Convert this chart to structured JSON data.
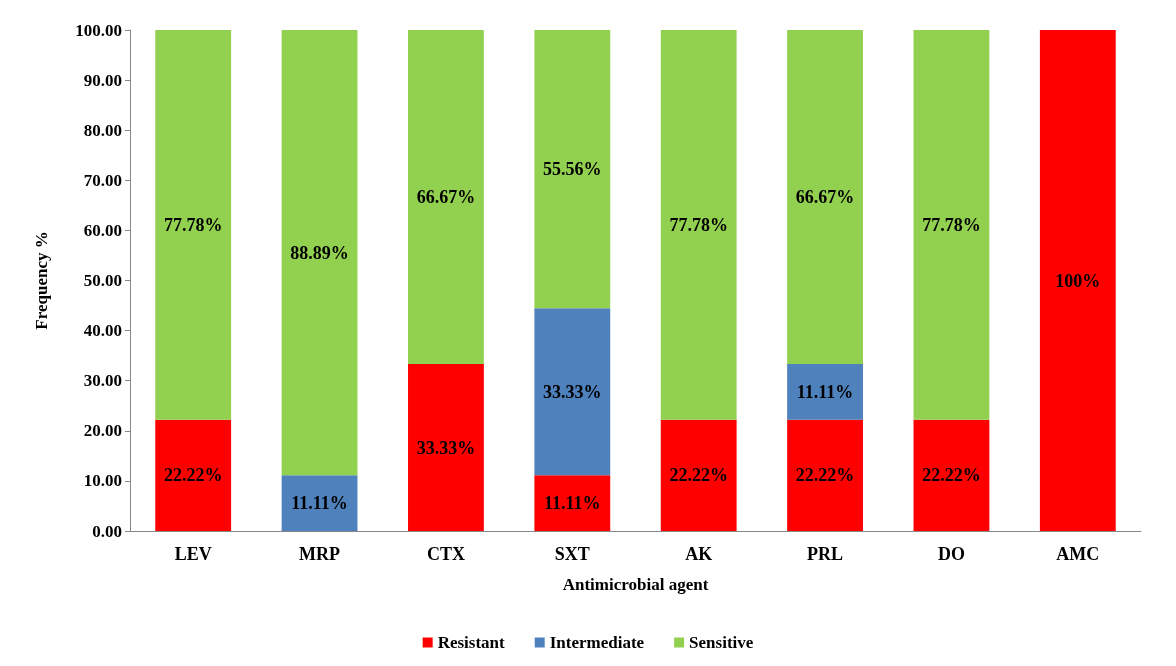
{
  "chart_data": {
    "type": "bar",
    "stacked": true,
    "xlabel": "Antimicrobial agent",
    "ylabel": "Frequency %",
    "categories": [
      "LEV",
      "MRP",
      "CTX",
      "SXT",
      "AK",
      "PRL",
      "DO",
      "AMC"
    ],
    "series": [
      {
        "name": "Resistant",
        "color": "#ff0000",
        "values": [
          22.22,
          null,
          33.33,
          11.11,
          22.22,
          22.22,
          22.22,
          100
        ],
        "value_labels": [
          "22.22%",
          null,
          "33.33%",
          "11.11%",
          "22.22%",
          "22.22%",
          "22.22%",
          "100%"
        ]
      },
      {
        "name": "Intermediate",
        "color": "#4f81bd",
        "values": [
          null,
          11.11,
          null,
          33.33,
          null,
          11.11,
          null,
          null
        ],
        "value_labels": [
          null,
          "11.11%",
          null,
          "33.33%",
          null,
          "11.11%",
          null,
          null
        ]
      },
      {
        "name": "Sensitive",
        "color": "#92d050",
        "values": [
          77.78,
          88.89,
          66.67,
          55.56,
          77.78,
          66.67,
          77.78,
          null
        ],
        "value_labels": [
          "77.78%",
          "88.89%",
          "66.67%",
          "55.56%",
          "77.78%",
          "66.67%",
          "77.78%",
          null
        ]
      }
    ],
    "ylim": [
      0,
      100
    ],
    "yticks": [
      {
        "value": 0,
        "label": "0.00"
      },
      {
        "value": 10,
        "label": "10.00"
      },
      {
        "value": 20,
        "label": "20.00"
      },
      {
        "value": 30,
        "label": "30.00"
      },
      {
        "value": 40,
        "label": "40.00"
      },
      {
        "value": 50,
        "label": "50.00"
      },
      {
        "value": 60,
        "label": "60.00"
      },
      {
        "value": 70,
        "label": "70.00"
      },
      {
        "value": 80,
        "label": "80.00"
      },
      {
        "value": 90,
        "label": "90.00"
      },
      {
        "value": 100,
        "label": "100.00"
      }
    ],
    "grid": false,
    "legend": "bottom"
  }
}
